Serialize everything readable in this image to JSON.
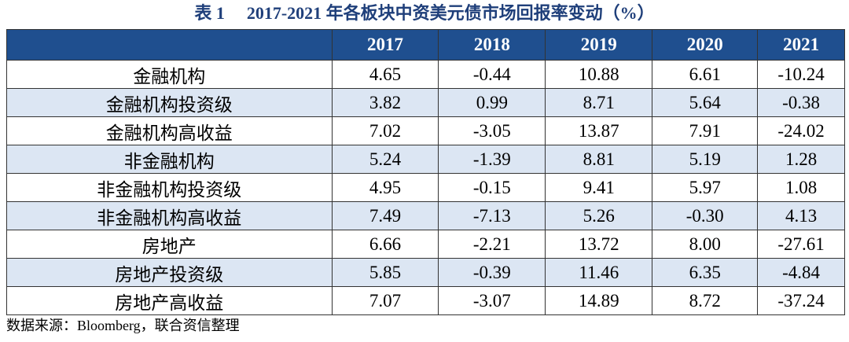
{
  "header": {
    "label": "表 1",
    "title": "2017-2021 年各板块中资美元债市场回报率变动（%）"
  },
  "table": {
    "columns": [
      "",
      "2017",
      "2018",
      "2019",
      "2020",
      "2021"
    ],
    "rows": [
      [
        "金融机构",
        "4.65",
        "-0.44",
        "10.88",
        "6.61",
        "-10.24"
      ],
      [
        "金融机构投资级",
        "3.82",
        "0.99",
        "8.71",
        "5.64",
        "-0.38"
      ],
      [
        "金融机构高收益",
        "7.02",
        "-3.05",
        "13.87",
        "7.91",
        "-24.02"
      ],
      [
        "非金融机构",
        "5.24",
        "-1.39",
        "8.81",
        "5.19",
        "1.28"
      ],
      [
        "非金融机构投资级",
        "4.95",
        "-0.15",
        "9.41",
        "5.97",
        "1.08"
      ],
      [
        "非金融机构高收益",
        "7.49",
        "-7.13",
        "5.26",
        "-0.30",
        "4.13"
      ],
      [
        "房地产",
        "6.66",
        "-2.21",
        "13.72",
        "8.00",
        "-27.61"
      ],
      [
        "房地产投资级",
        "5.85",
        "-0.39",
        "11.46",
        "6.35",
        "-4.84"
      ],
      [
        "房地产高收益",
        "7.07",
        "-3.07",
        "14.89",
        "8.72",
        "-37.24"
      ]
    ]
  },
  "source": "数据来源：Bloomberg，联合资信整理"
}
